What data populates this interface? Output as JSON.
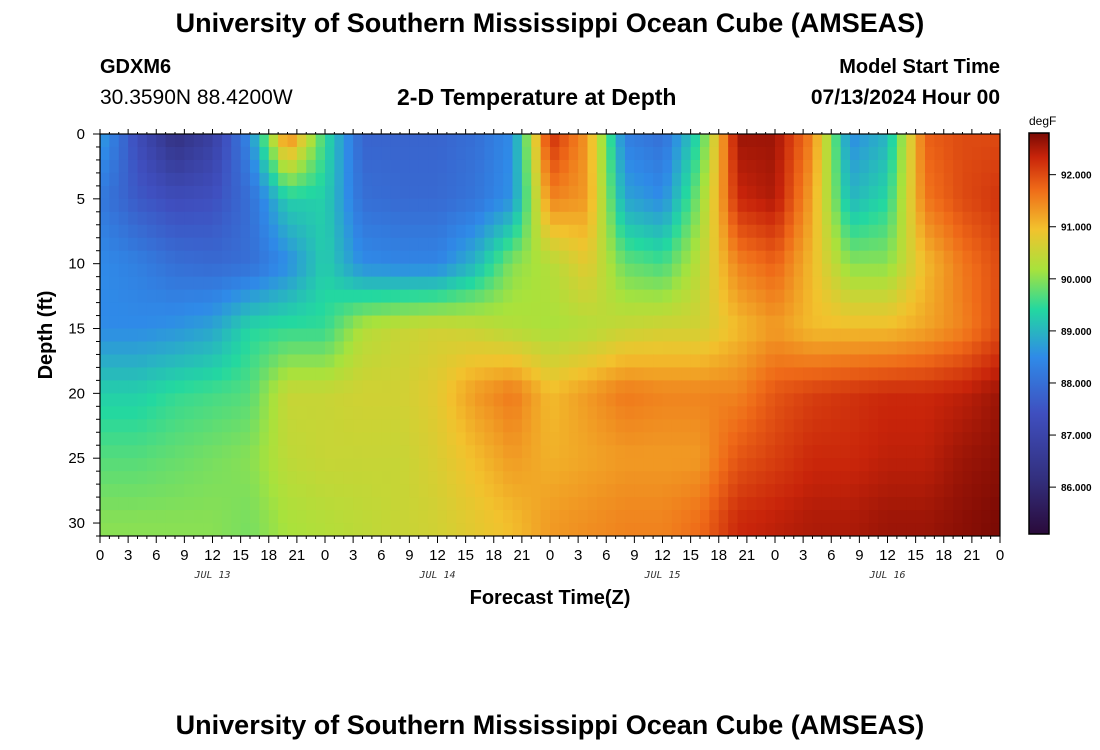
{
  "header": {
    "title": "University of Southern Mississippi Ocean Cube (AMSEAS)",
    "station_id": "GDXM6",
    "coordinates": "30.3590N  88.4200W",
    "subtitle": "2-D Temperature at Depth",
    "model_start_label": "Model Start Time",
    "model_start_value": "07/13/2024 Hour 00"
  },
  "footer": {
    "title": "University of Southern Mississippi Ocean Cube (AMSEAS)"
  },
  "chart_data": {
    "type": "heatmap",
    "title": "2-D Temperature at Depth",
    "xlabel": "Forecast Time(Z)",
    "ylabel": "Depth (ft)",
    "x_hours_range": [
      0,
      96
    ],
    "y_depth_range": [
      0,
      31
    ],
    "x_tick_labels": [
      "0",
      "3",
      "6",
      "9",
      "12",
      "15",
      "18",
      "21",
      "0",
      "3",
      "6",
      "9",
      "12",
      "15",
      "18",
      "21",
      "0",
      "3",
      "6",
      "9",
      "12",
      "15",
      "18",
      "21",
      "0",
      "3",
      "6",
      "9",
      "12",
      "15",
      "18",
      "21",
      "0"
    ],
    "y_ticks": [
      0,
      5,
      10,
      15,
      20,
      25,
      30
    ],
    "day_labels": [
      {
        "label": "JUL 13",
        "hour": 12
      },
      {
        "label": "JUL 14",
        "hour": 36
      },
      {
        "label": "JUL 15",
        "hour": 60
      },
      {
        "label": "JUL 16",
        "hour": 84
      }
    ],
    "colorbar": {
      "unit": "degF",
      "range": [
        85.1,
        92.8
      ],
      "tick_values": [
        86.0,
        87.0,
        88.0,
        89.0,
        90.0,
        91.0,
        92.0
      ],
      "tick_labels": [
        "86.000",
        "87.000",
        "88.000",
        "89.000",
        "90.000",
        "91.000",
        "92.000"
      ]
    },
    "depths_ft": [
      0,
      5,
      10,
      15,
      20,
      25,
      30
    ],
    "hours": [
      0,
      4,
      8,
      12,
      16,
      20,
      24,
      28,
      32,
      36,
      40,
      44,
      48,
      52,
      56,
      60,
      64,
      68,
      72,
      76,
      80,
      84,
      88,
      92,
      96
    ],
    "temperature_degF": [
      [
        88.8,
        87.3,
        86.2,
        86.8,
        88.5,
        91.7,
        89.5,
        87.8,
        87.8,
        87.8,
        88.0,
        88.5,
        92.3,
        91.3,
        88.3,
        88.0,
        89.5,
        92.6,
        92.6,
        91.5,
        88.5,
        89.0,
        91.8,
        92.0,
        92.0
      ],
      [
        88.2,
        87.6,
        87.3,
        87.4,
        88.0,
        89.3,
        89.3,
        88.0,
        87.9,
        87.9,
        88.1,
        88.6,
        91.5,
        91.3,
        88.8,
        88.5,
        90.0,
        92.3,
        92.5,
        91.2,
        89.0,
        89.4,
        91.6,
        92.0,
        92.2
      ],
      [
        88.5,
        88.3,
        88.0,
        87.9,
        88.0,
        88.5,
        89.3,
        88.5,
        88.4,
        88.4,
        89.0,
        90.0,
        90.3,
        90.8,
        89.8,
        89.6,
        90.4,
        91.5,
        91.8,
        91.0,
        90.0,
        90.0,
        91.0,
        91.6,
        92.0
      ],
      [
        88.5,
        88.5,
        88.6,
        88.8,
        89.4,
        89.5,
        89.5,
        90.3,
        90.5,
        90.6,
        90.5,
        90.3,
        90.2,
        90.3,
        90.5,
        90.6,
        90.6,
        91.0,
        91.3,
        91.0,
        91.0,
        91.0,
        91.2,
        91.5,
        92.0
      ],
      [
        89.3,
        89.3,
        89.5,
        89.6,
        89.7,
        90.5,
        90.5,
        90.6,
        90.6,
        90.8,
        91.3,
        91.6,
        91.0,
        91.3,
        91.6,
        91.5,
        91.5,
        91.5,
        91.9,
        92.1,
        92.2,
        92.3,
        92.3,
        92.4,
        92.6
      ],
      [
        89.7,
        89.7,
        89.8,
        89.9,
        90.0,
        90.4,
        90.5,
        90.5,
        90.5,
        90.7,
        91.0,
        91.3,
        91.1,
        91.2,
        91.3,
        91.3,
        91.3,
        91.9,
        92.1,
        92.3,
        92.3,
        92.4,
        92.4,
        92.6,
        92.7
      ],
      [
        90.0,
        90.0,
        90.0,
        90.0,
        89.9,
        90.2,
        90.3,
        90.4,
        90.5,
        90.6,
        90.8,
        91.0,
        91.3,
        91.4,
        91.5,
        91.5,
        91.7,
        92.3,
        92.4,
        92.5,
        92.5,
        92.6,
        92.6,
        92.7,
        92.8
      ]
    ]
  }
}
